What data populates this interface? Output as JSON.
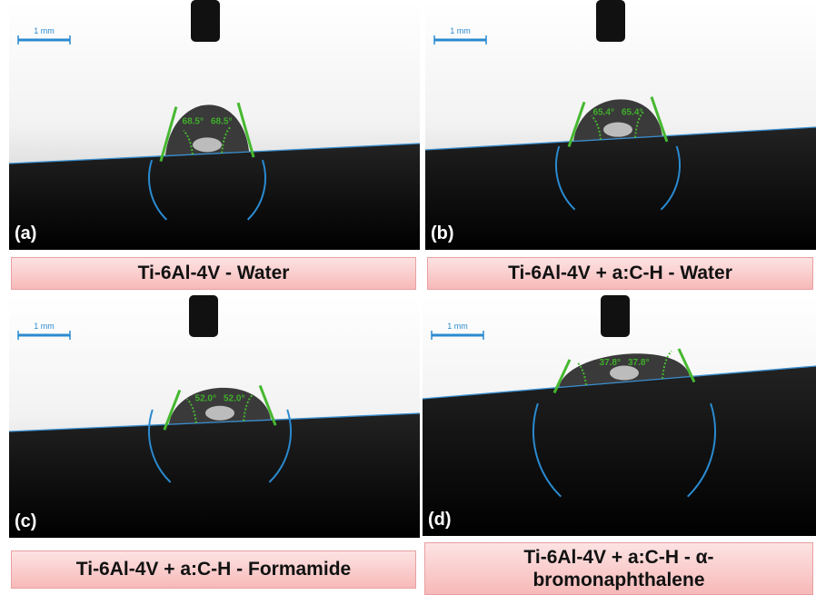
{
  "panels": [
    {
      "label": "(a)",
      "scale_bar": "1 mm",
      "angles": [
        "68.5°",
        "68.5°"
      ],
      "caption": "Ti-6Al-4V - Water"
    },
    {
      "label": "(b)",
      "scale_bar": "1 mm",
      "angles": [
        "65.4°",
        "65.4°"
      ],
      "caption": "Ti-6Al-4V + a:C-H - Water"
    },
    {
      "label": "(c)",
      "scale_bar": "1 mm",
      "angles": [
        "52.0°",
        "52.0°"
      ],
      "caption": "Ti-6Al-4V + a:C-H - Formamide"
    },
    {
      "label": "(d)",
      "scale_bar": "1 mm",
      "angles": [
        "37.8°",
        "37.8°"
      ],
      "caption": "Ti-6Al-4V  + a:C-H - α-bromonaphthalene"
    }
  ]
}
